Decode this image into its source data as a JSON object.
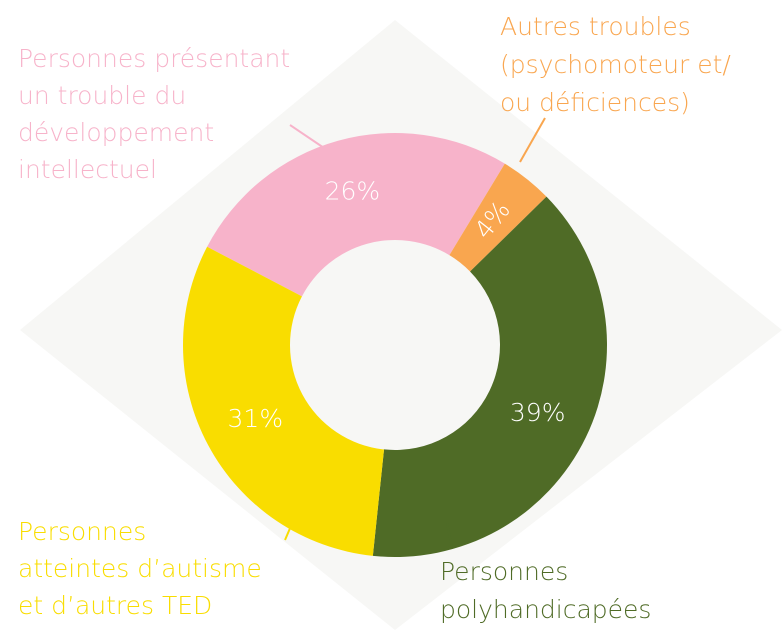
{
  "chart_data": {
    "type": "donut",
    "categories": [
      [
        "Personnes présentant",
        "un trouble du",
        "développement",
        "intellectuel"
      ],
      [
        "Autres troubles",
        "(psychomoteur et/",
        "ou déficiences)"
      ],
      [
        "Personnes",
        "polyhandicapées"
      ],
      [
        "Personnes",
        "atteintes d’autisme",
        "et d’autres TED"
      ]
    ],
    "values": [
      26,
      4,
      39,
      31
    ],
    "value_labels": [
      "26%",
      "4%",
      "39%",
      "31%"
    ],
    "colors": [
      "#f7b3ca",
      "#f9a64f",
      "#4f6b26",
      "#f9dd00"
    ]
  }
}
